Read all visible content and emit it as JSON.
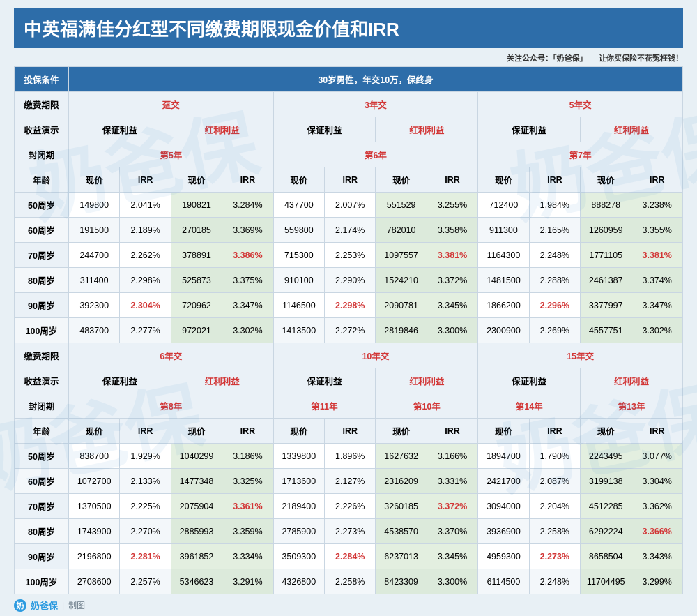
{
  "title": "中英福满佳分红型不同缴费期限现金价值和IRR",
  "subhead": "关注公众号：「奶爸保」　　让你买保险不花冤枉钱！",
  "labels": {
    "condition": "投保条件",
    "conditionVal": "30岁男性，年交10万，保终身",
    "payPeriod": "缴费期限",
    "benefitDemo": "收益演示",
    "guaranteed": "保证利益",
    "bonus": "红利利益",
    "closed": "封闭期",
    "age": "年龄",
    "pv": "现价",
    "irr": "IRR"
  },
  "blocks": [
    {
      "plans": [
        {
          "pay": "趸交",
          "closedG": "第5年",
          "closedB": "第5年",
          "oneClosed": true
        },
        {
          "pay": "3年交",
          "closedG": "第6年",
          "closedB": "第6年",
          "oneClosed": true
        },
        {
          "pay": "5年交",
          "closedG": "第7年",
          "closedB": "第7年",
          "oneClosed": true
        }
      ],
      "rows": [
        {
          "age": "50周岁",
          "cells": [
            {
              "pv": "149800",
              "irr": "2.041%"
            },
            {
              "pv": "190821",
              "irr": "3.284%"
            },
            {
              "pv": "437700",
              "irr": "2.007%"
            },
            {
              "pv": "551529",
              "irr": "3.255%"
            },
            {
              "pv": "712400",
              "irr": "1.984%"
            },
            {
              "pv": "888278",
              "irr": "3.238%"
            }
          ]
        },
        {
          "age": "60周岁",
          "cells": [
            {
              "pv": "191500",
              "irr": "2.189%"
            },
            {
              "pv": "270185",
              "irr": "3.369%"
            },
            {
              "pv": "559800",
              "irr": "2.174%"
            },
            {
              "pv": "782010",
              "irr": "3.358%"
            },
            {
              "pv": "911300",
              "irr": "2.165%"
            },
            {
              "pv": "1260959",
              "irr": "3.355%"
            }
          ]
        },
        {
          "age": "70周岁",
          "cells": [
            {
              "pv": "244700",
              "irr": "2.262%"
            },
            {
              "pv": "378891",
              "irr": "3.386%",
              "red": true
            },
            {
              "pv": "715300",
              "irr": "2.253%"
            },
            {
              "pv": "1097557",
              "irr": "3.381%",
              "red": true
            },
            {
              "pv": "1164300",
              "irr": "2.248%"
            },
            {
              "pv": "1771105",
              "irr": "3.381%",
              "red": true
            }
          ]
        },
        {
          "age": "80周岁",
          "cells": [
            {
              "pv": "311400",
              "irr": "2.298%"
            },
            {
              "pv": "525873",
              "irr": "3.375%"
            },
            {
              "pv": "910100",
              "irr": "2.290%"
            },
            {
              "pv": "1524210",
              "irr": "3.372%"
            },
            {
              "pv": "1481500",
              "irr": "2.288%"
            },
            {
              "pv": "2461387",
              "irr": "3.374%"
            }
          ]
        },
        {
          "age": "90周岁",
          "cells": [
            {
              "pv": "392300",
              "irr": "2.304%",
              "red": true
            },
            {
              "pv": "720962",
              "irr": "3.347%"
            },
            {
              "pv": "1146500",
              "irr": "2.298%",
              "red": true
            },
            {
              "pv": "2090781",
              "irr": "3.345%"
            },
            {
              "pv": "1866200",
              "irr": "2.296%",
              "red": true
            },
            {
              "pv": "3377997",
              "irr": "3.347%"
            }
          ]
        },
        {
          "age": "100周岁",
          "cells": [
            {
              "pv": "483700",
              "irr": "2.277%"
            },
            {
              "pv": "972021",
              "irr": "3.302%"
            },
            {
              "pv": "1413500",
              "irr": "2.272%"
            },
            {
              "pv": "2819846",
              "irr": "3.300%"
            },
            {
              "pv": "2300900",
              "irr": "2.269%"
            },
            {
              "pv": "4557751",
              "irr": "3.302%"
            }
          ]
        }
      ]
    },
    {
      "plans": [
        {
          "pay": "6年交",
          "closedG": "第8年",
          "closedB": "第8年",
          "oneClosed": true
        },
        {
          "pay": "10年交",
          "closedG": "第11年",
          "closedB": "第10年",
          "oneClosed": false
        },
        {
          "pay": "15年交",
          "closedG": "第14年",
          "closedB": "第13年",
          "oneClosed": false
        }
      ],
      "rows": [
        {
          "age": "50周岁",
          "cells": [
            {
              "pv": "838700",
              "irr": "1.929%"
            },
            {
              "pv": "1040299",
              "irr": "3.186%"
            },
            {
              "pv": "1339800",
              "irr": "1.896%"
            },
            {
              "pv": "1627632",
              "irr": "3.166%"
            },
            {
              "pv": "1894700",
              "irr": "1.790%"
            },
            {
              "pv": "2243495",
              "irr": "3.077%"
            }
          ]
        },
        {
          "age": "60周岁",
          "cells": [
            {
              "pv": "1072700",
              "irr": "2.133%"
            },
            {
              "pv": "1477348",
              "irr": "3.325%"
            },
            {
              "pv": "1713600",
              "irr": "2.127%"
            },
            {
              "pv": "2316209",
              "irr": "3.331%"
            },
            {
              "pv": "2421700",
              "irr": "2.087%"
            },
            {
              "pv": "3199138",
              "irr": "3.304%"
            }
          ]
        },
        {
          "age": "70周岁",
          "cells": [
            {
              "pv": "1370500",
              "irr": "2.225%"
            },
            {
              "pv": "2075904",
              "irr": "3.361%",
              "red": true
            },
            {
              "pv": "2189400",
              "irr": "2.226%"
            },
            {
              "pv": "3260185",
              "irr": "3.372%",
              "red": true
            },
            {
              "pv": "3094000",
              "irr": "2.204%"
            },
            {
              "pv": "4512285",
              "irr": "3.362%"
            }
          ]
        },
        {
          "age": "80周岁",
          "cells": [
            {
              "pv": "1743900",
              "irr": "2.270%"
            },
            {
              "pv": "2885993",
              "irr": "3.359%"
            },
            {
              "pv": "2785900",
              "irr": "2.273%"
            },
            {
              "pv": "4538570",
              "irr": "3.370%"
            },
            {
              "pv": "3936900",
              "irr": "2.258%"
            },
            {
              "pv": "6292224",
              "irr": "3.366%",
              "red": true
            }
          ]
        },
        {
          "age": "90周岁",
          "cells": [
            {
              "pv": "2196800",
              "irr": "2.281%",
              "red": true
            },
            {
              "pv": "3961852",
              "irr": "3.334%"
            },
            {
              "pv": "3509300",
              "irr": "2.284%",
              "red": true
            },
            {
              "pv": "6237013",
              "irr": "3.345%"
            },
            {
              "pv": "4959300",
              "irr": "2.273%",
              "red": true
            },
            {
              "pv": "8658504",
              "irr": "3.343%"
            }
          ]
        },
        {
          "age": "100周岁",
          "cells": [
            {
              "pv": "2708600",
              "irr": "2.257%"
            },
            {
              "pv": "5346623",
              "irr": "3.291%"
            },
            {
              "pv": "4326800",
              "irr": "2.258%"
            },
            {
              "pv": "8423309",
              "irr": "3.300%"
            },
            {
              "pv": "6114500",
              "irr": "2.248%"
            },
            {
              "pv": "11704495",
              "irr": "3.299%"
            }
          ]
        }
      ]
    }
  ],
  "footer": {
    "logo": "奶",
    "brand": "奶爸保",
    "tag": "制图"
  }
}
